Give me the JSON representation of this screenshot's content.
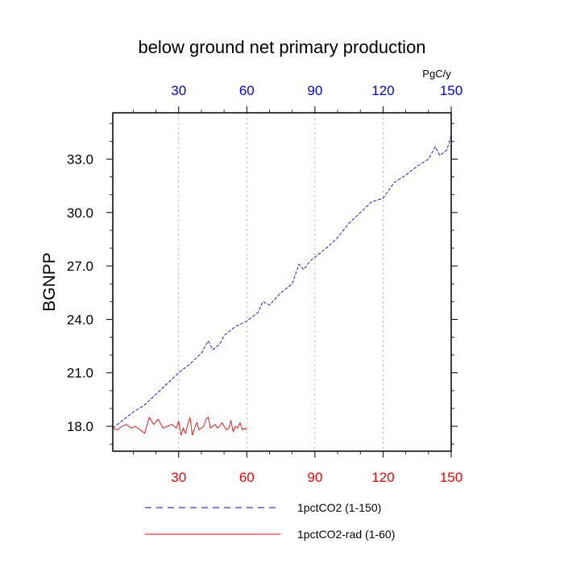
{
  "chart_data": {
    "type": "line",
    "title": "below ground net primary production",
    "ylabel": "BGNPP",
    "units": "PgC/y",
    "xlim": [
      1,
      150
    ],
    "ylim": [
      16.6,
      35.6
    ],
    "x_ticks": [
      "30",
      "60",
      "90",
      "120",
      "150"
    ],
    "y_ticks": [
      "18.0",
      "21.0",
      "24.0",
      "27.0",
      "30.0",
      "33.0"
    ],
    "grid": "vertical dashed at x ticks",
    "top_axis_color": "#0000ff",
    "bottom_axis_color": "#ff0000",
    "series": [
      {
        "name": "1pctCO2 (1-150)",
        "color": "#0000ff",
        "style": "dashed",
        "x": [
          1,
          5,
          10,
          15,
          20,
          25,
          30,
          35,
          40,
          43,
          45,
          48,
          50,
          55,
          60,
          65,
          67,
          70,
          75,
          80,
          83,
          85,
          88,
          90,
          95,
          100,
          105,
          110,
          115,
          120,
          125,
          130,
          135,
          140,
          143,
          145,
          148,
          150
        ],
        "values": [
          17.9,
          18.3,
          18.8,
          19.2,
          19.8,
          20.4,
          21.0,
          21.5,
          22.1,
          22.8,
          22.3,
          22.6,
          23.1,
          23.6,
          23.9,
          24.4,
          25.0,
          24.8,
          25.5,
          26.0,
          27.1,
          26.8,
          27.3,
          27.5,
          28.0,
          28.6,
          29.4,
          30.0,
          30.6,
          30.8,
          31.7,
          32.1,
          32.6,
          33.0,
          33.7,
          33.2,
          33.5,
          34.3
        ]
      },
      {
        "name": "1pctCO2-rad (1-60)",
        "color": "#ff0000",
        "style": "solid",
        "x": [
          1,
          3,
          5,
          7,
          9,
          11,
          13,
          15,
          17,
          19,
          21,
          23,
          25,
          27,
          29,
          30,
          31,
          32,
          33,
          34,
          35,
          36,
          37,
          38,
          39,
          40,
          41,
          42,
          43,
          44,
          45,
          46,
          47,
          48,
          49,
          50,
          51,
          52,
          53,
          54,
          55,
          56,
          57,
          58,
          59,
          60
        ],
        "values": [
          17.9,
          17.8,
          18.0,
          18.1,
          17.9,
          18.0,
          17.8,
          17.6,
          18.5,
          18.1,
          18.4,
          17.9,
          18.0,
          18.1,
          17.9,
          18.3,
          17.5,
          17.9,
          17.6,
          18.1,
          18.5,
          17.5,
          17.9,
          18.2,
          17.8,
          17.9,
          18.0,
          18.4,
          18.5,
          17.9,
          18.0,
          18.1,
          17.9,
          18.0,
          18.2,
          18.0,
          17.8,
          17.9,
          18.3,
          17.7,
          18.0,
          17.9,
          18.2,
          17.8,
          17.9,
          17.8
        ]
      }
    ]
  }
}
